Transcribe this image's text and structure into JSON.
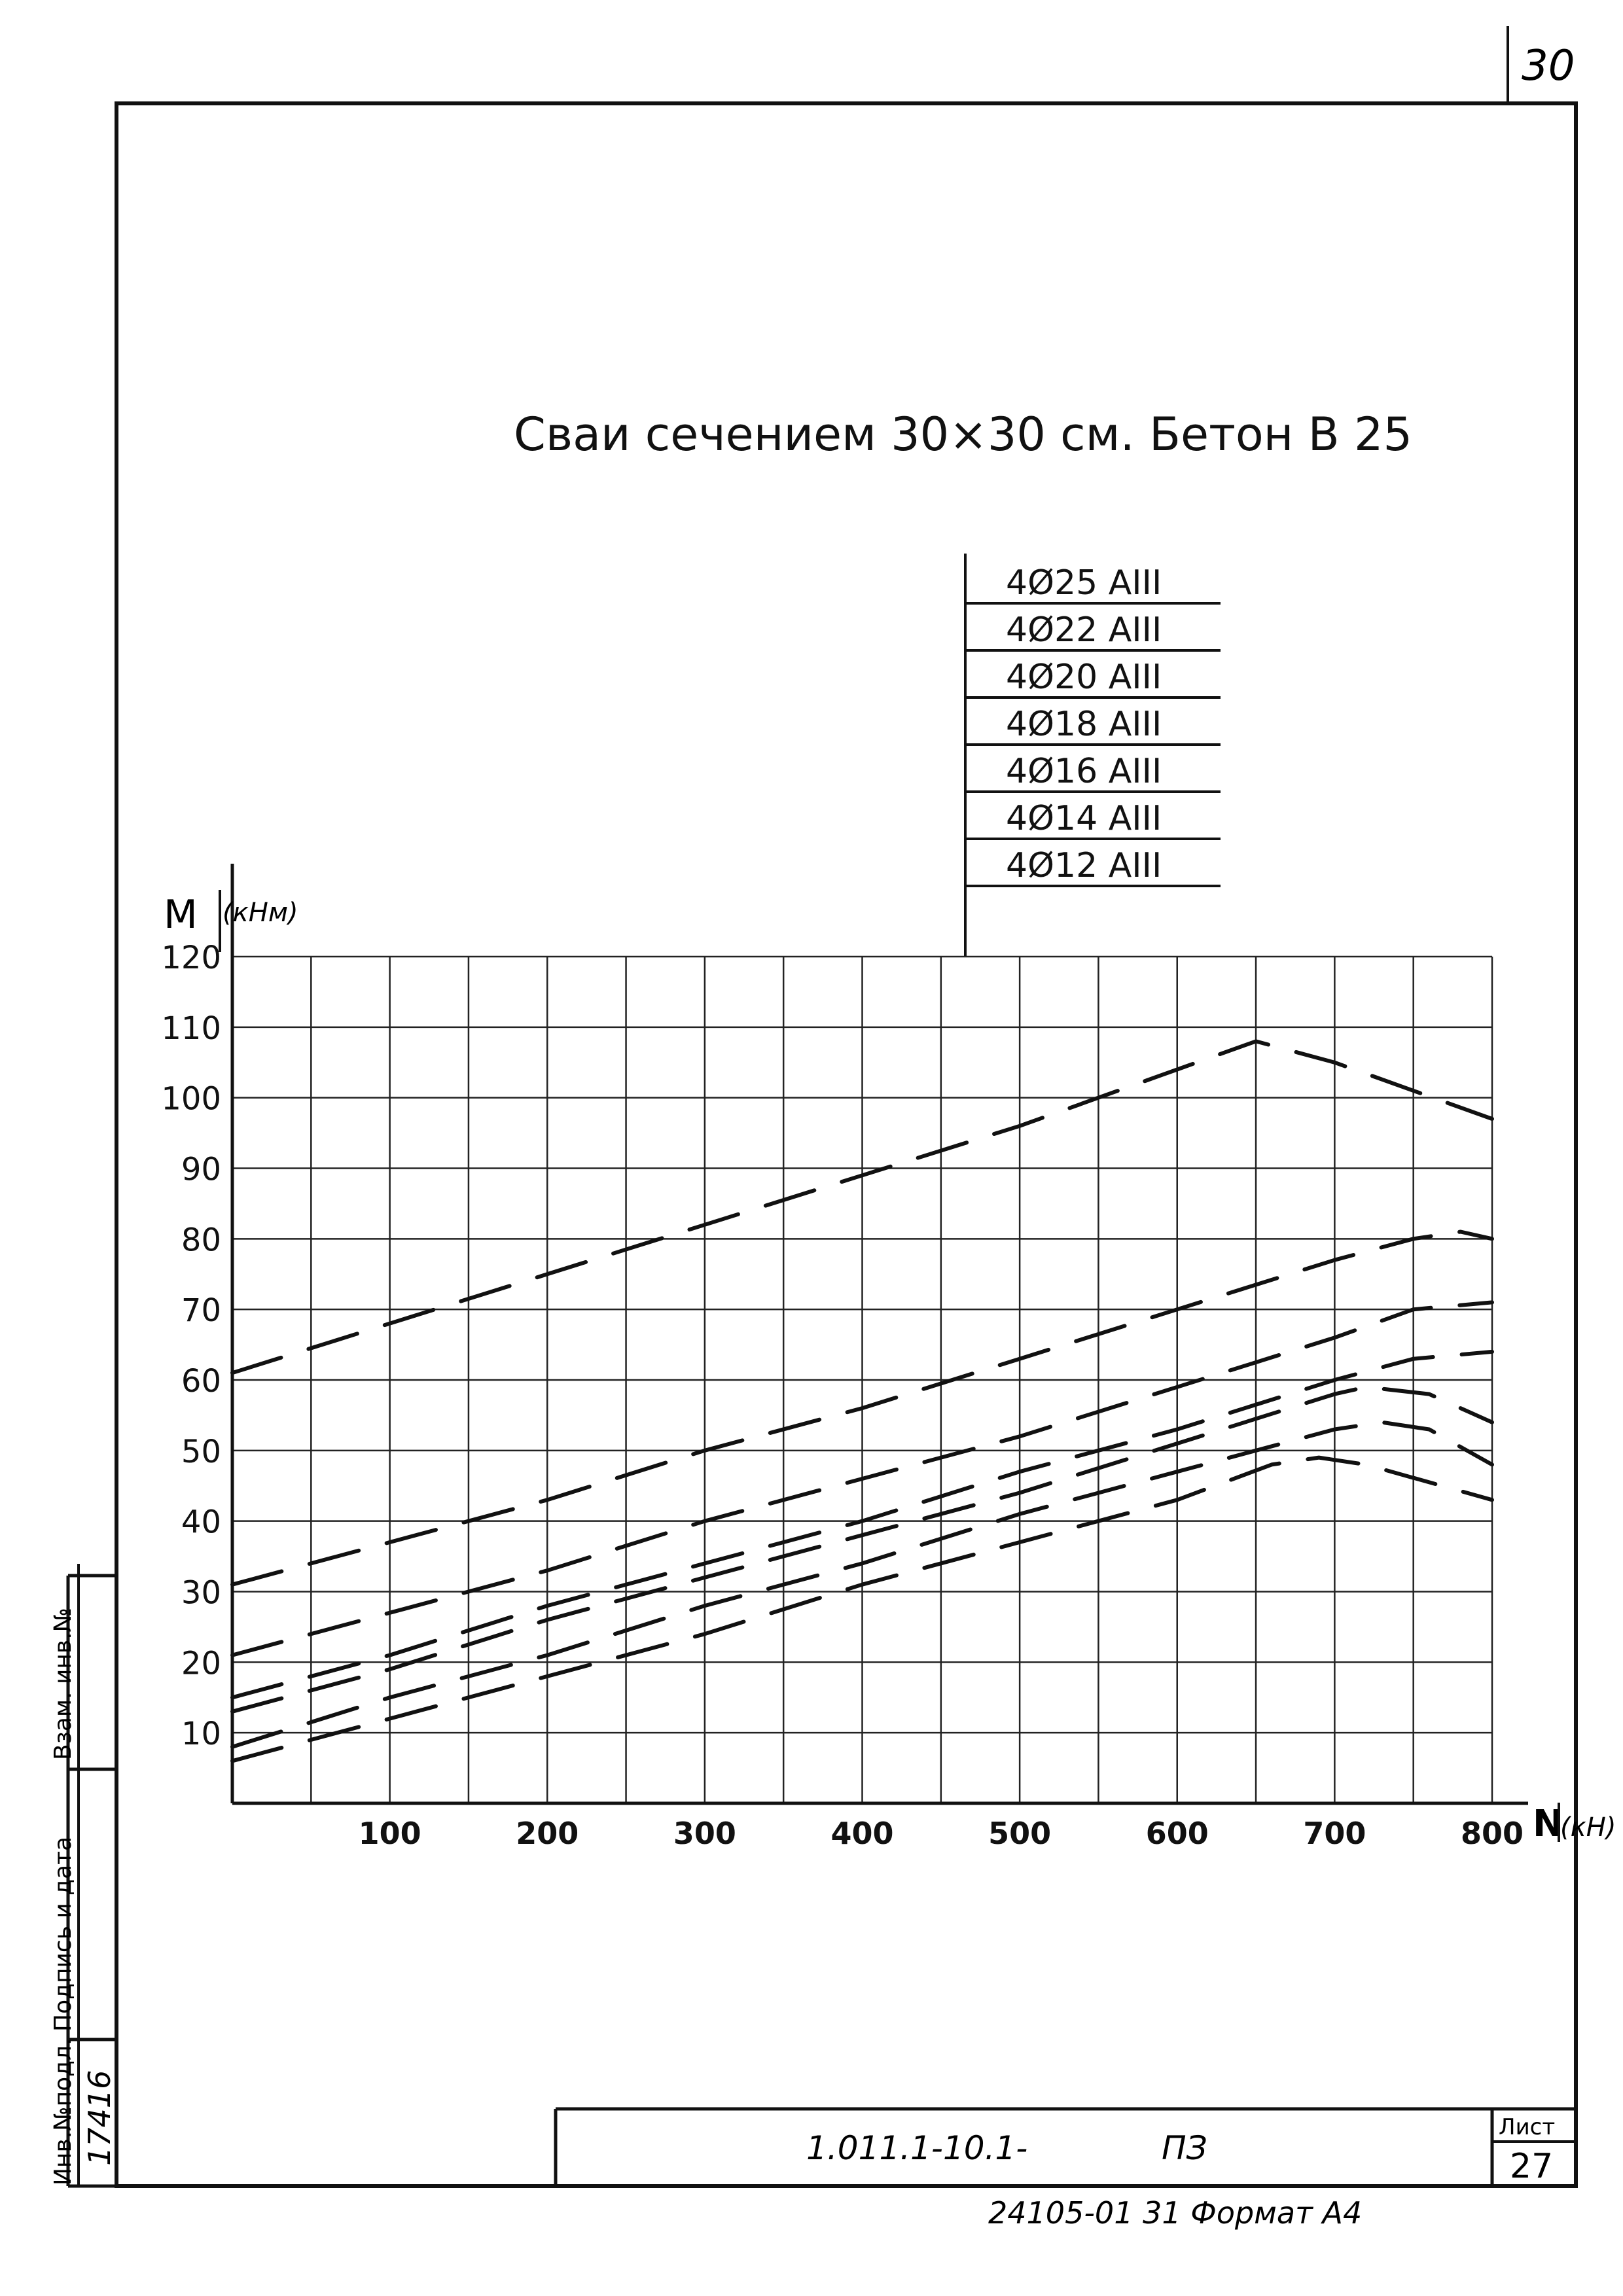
{
  "page": {
    "sheet_number_top": "30",
    "title": "Сваи сечением  30×30 см.  Бетон  В 25"
  },
  "legend": {
    "entries": [
      "4Ø25 AIII",
      "4Ø22 AIII",
      "4Ø20 AIII",
      "4Ø18 AIII",
      "4Ø16 AIII",
      "4Ø14 AIII",
      "4Ø12 AIII"
    ]
  },
  "stamp": {
    "side_labels": [
      "Инв.№подл.",
      "Подпись и дата",
      "Взам. инв.№"
    ],
    "inventory_number": "17416",
    "doc_code": "1.011.1-10.1-",
    "doc_section": "ПЗ",
    "sheet_label": "Лист",
    "sheet_value": "27",
    "footer": "24105-01  31   Формат А4"
  },
  "chart_data": {
    "type": "line",
    "title": "Сваи сечением 30×30 см. Бетон В 25",
    "ylabel": "M",
    "yunit": "(кНм)",
    "xlabel": "N",
    "xunit": "(кН)",
    "xlim": [
      0,
      800
    ],
    "ylim": [
      0,
      120
    ],
    "x_ticks": [
      100,
      200,
      300,
      400,
      500,
      600,
      700,
      800
    ],
    "y_ticks": [
      10,
      20,
      30,
      40,
      50,
      60,
      70,
      80,
      90,
      100,
      110,
      120
    ],
    "grid": true,
    "line_style": "dashed",
    "color": "#111111",
    "series": [
      {
        "name": "4Ø25 AIII",
        "points": [
          [
            0,
            61
          ],
          [
            100,
            68
          ],
          [
            200,
            75
          ],
          [
            300,
            82
          ],
          [
            400,
            89
          ],
          [
            500,
            96
          ],
          [
            600,
            104
          ],
          [
            650,
            108
          ],
          [
            700,
            105
          ],
          [
            750,
            101
          ],
          [
            800,
            97
          ]
        ]
      },
      {
        "name": "4Ø22 AIII",
        "points": [
          [
            0,
            31
          ],
          [
            100,
            37
          ],
          [
            200,
            43
          ],
          [
            300,
            50
          ],
          [
            400,
            56
          ],
          [
            500,
            63
          ],
          [
            600,
            70
          ],
          [
            700,
            77
          ],
          [
            750,
            80
          ],
          [
            780,
            81
          ],
          [
            800,
            80
          ]
        ]
      },
      {
        "name": "4Ø20 AIII",
        "points": [
          [
            0,
            21
          ],
          [
            100,
            27
          ],
          [
            200,
            33
          ],
          [
            300,
            40
          ],
          [
            400,
            46
          ],
          [
            500,
            52
          ],
          [
            600,
            59
          ],
          [
            700,
            66
          ],
          [
            750,
            70
          ],
          [
            800,
            71
          ]
        ]
      },
      {
        "name": "4Ø18 AIII",
        "points": [
          [
            0,
            15
          ],
          [
            100,
            21
          ],
          [
            200,
            28
          ],
          [
            300,
            34
          ],
          [
            400,
            40
          ],
          [
            500,
            47
          ],
          [
            600,
            53
          ],
          [
            700,
            60
          ],
          [
            750,
            63
          ],
          [
            800,
            64
          ]
        ]
      },
      {
        "name": "4Ø16 AIII",
        "points": [
          [
            0,
            13
          ],
          [
            100,
            19
          ],
          [
            200,
            26
          ],
          [
            300,
            32
          ],
          [
            400,
            38
          ],
          [
            500,
            44
          ],
          [
            600,
            51
          ],
          [
            700,
            58
          ],
          [
            720,
            59
          ],
          [
            760,
            58
          ],
          [
            800,
            54
          ]
        ]
      },
      {
        "name": "4Ø14 AIII",
        "points": [
          [
            0,
            8
          ],
          [
            100,
            15
          ],
          [
            200,
            21
          ],
          [
            300,
            28
          ],
          [
            400,
            34
          ],
          [
            500,
            41
          ],
          [
            600,
            47
          ],
          [
            700,
            53
          ],
          [
            730,
            54
          ],
          [
            760,
            53
          ],
          [
            800,
            48
          ]
        ]
      },
      {
        "name": "4Ø12 AIII",
        "points": [
          [
            0,
            6
          ],
          [
            100,
            12
          ],
          [
            200,
            18
          ],
          [
            300,
            24
          ],
          [
            400,
            31
          ],
          [
            500,
            37
          ],
          [
            600,
            43
          ],
          [
            660,
            48
          ],
          [
            690,
            49
          ],
          [
            720,
            48
          ],
          [
            800,
            43
          ]
        ]
      }
    ]
  }
}
